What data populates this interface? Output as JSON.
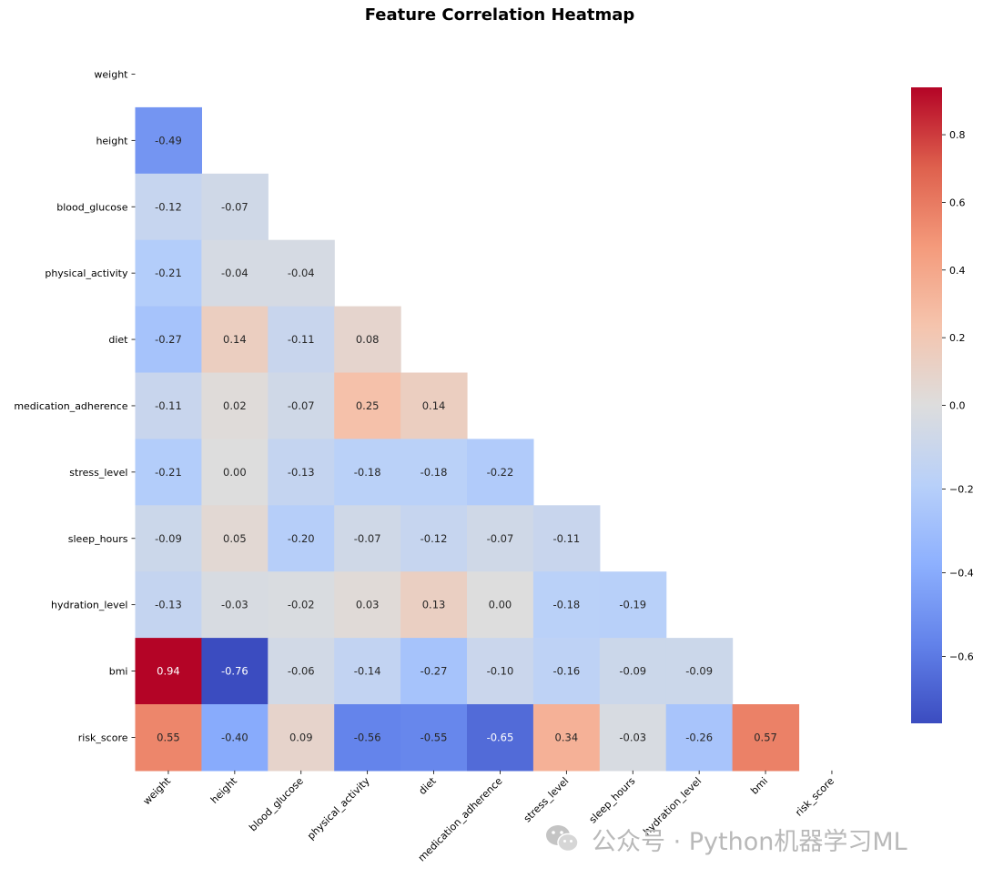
{
  "chart_data": {
    "type": "heatmap",
    "title": "Feature Correlation Heatmap",
    "labels": [
      "weight",
      "height",
      "blood_glucose",
      "physical_activity",
      "diet",
      "medication_adherence",
      "stress_level",
      "sleep_hours",
      "hydration_level",
      "bmi",
      "risk_score"
    ],
    "mask": "upper triangle incl. diagonal",
    "matrix": [
      [
        null,
        null,
        null,
        null,
        null,
        null,
        null,
        null,
        null,
        null,
        null
      ],
      [
        -0.49,
        null,
        null,
        null,
        null,
        null,
        null,
        null,
        null,
        null,
        null
      ],
      [
        -0.12,
        -0.07,
        null,
        null,
        null,
        null,
        null,
        null,
        null,
        null,
        null
      ],
      [
        -0.21,
        -0.04,
        -0.04,
        null,
        null,
        null,
        null,
        null,
        null,
        null,
        null
      ],
      [
        -0.27,
        0.14,
        -0.11,
        0.08,
        null,
        null,
        null,
        null,
        null,
        null,
        null
      ],
      [
        -0.11,
        0.02,
        -0.07,
        0.25,
        0.14,
        null,
        null,
        null,
        null,
        null,
        null
      ],
      [
        -0.21,
        0.0,
        -0.13,
        -0.18,
        -0.18,
        -0.22,
        null,
        null,
        null,
        null,
        null
      ],
      [
        -0.09,
        0.05,
        -0.2,
        -0.07,
        -0.12,
        -0.07,
        -0.11,
        null,
        null,
        null,
        null
      ],
      [
        -0.13,
        -0.03,
        -0.02,
        0.03,
        0.13,
        0.0,
        -0.18,
        -0.19,
        null,
        null,
        null
      ],
      [
        0.94,
        -0.76,
        -0.06,
        -0.14,
        -0.27,
        -0.1,
        -0.16,
        -0.09,
        -0.09,
        null,
        null
      ],
      [
        0.55,
        -0.4,
        0.09,
        -0.56,
        -0.55,
        -0.65,
        0.34,
        -0.03,
        -0.26,
        0.57,
        null
      ]
    ],
    "colormap": "coolwarm",
    "vmin": -0.76,
    "vmax": 0.94,
    "colorbar_ticks": [
      0.8,
      0.6,
      0.4,
      0.2,
      0.0,
      -0.2,
      -0.4,
      -0.6
    ],
    "colorbar_tick_labels": [
      "0.8",
      "0.6",
      "0.4",
      "0.2",
      "0.0",
      "−0.2",
      "−0.4",
      "−0.6"
    ]
  },
  "watermark": {
    "text": "公众号 · Python机器学习ML",
    "icon": "wechat-icon"
  }
}
